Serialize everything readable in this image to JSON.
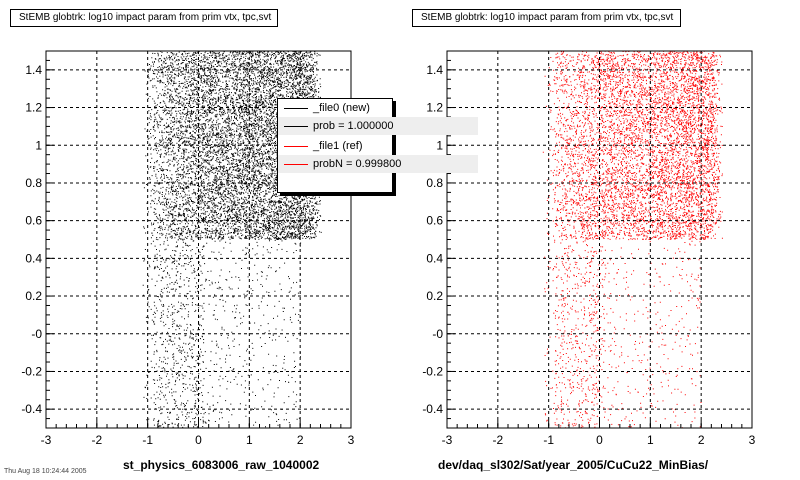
{
  "footer_note": "Thu Aug 18 10:24:44 2005",
  "panels": [
    {
      "title": "StEMB globtrk: log10 impact param from prim vtx, tpc,svt",
      "xlabel": "st_physics_6083006_raw_1040002"
    },
    {
      "title": "StEMB globtrk: log10 impact param from prim vtx, tpc,svt",
      "xlabel": "dev/daq_sl302/Sat/year_2005/CuCu22_MinBias/"
    }
  ],
  "legend": {
    "entries": [
      {
        "label": "_file0 (new)",
        "color": "#000000"
      },
      {
        "label": "prob = 1.000000",
        "color": "#000000"
      },
      {
        "label": "_file1 (ref)",
        "color": "#ff0000"
      },
      {
        "label": "probN = 0.999800",
        "color": "#ff0000"
      }
    ]
  },
  "chart_data": [
    {
      "type": "scatter",
      "title": "StEMB globtrk: log10 impact param from prim vtx, tpc,svt",
      "xlabel": "st_physics_6083006_raw_1040002",
      "ylabel": "",
      "xlim": [
        -3,
        3
      ],
      "ylim": [
        -0.5,
        1.5
      ],
      "xticks": [
        "-3",
        "-2",
        "-1",
        "0",
        "1",
        "2",
        "3"
      ],
      "yticks": [
        "-0.4",
        "-0.2",
        "-0",
        "0.2",
        "0.4",
        "0.6",
        "0.8",
        "1",
        "1.2",
        "1.4"
      ],
      "grid": true,
      "color": "#000000",
      "series": [
        {
          "name": "_file0 (new)",
          "regions": [
            {
              "description": "dense band",
              "x": [
                -1.0,
                2.3
              ],
              "y": [
                0.5,
                1.5
              ],
              "density": "high"
            },
            {
              "description": "sparse band",
              "x": [
                -1.1,
                2.0
              ],
              "y": [
                -0.5,
                0.5
              ],
              "density": "low"
            }
          ]
        }
      ]
    },
    {
      "type": "scatter",
      "title": "StEMB globtrk: log10 impact param from prim vtx, tpc,svt",
      "xlabel": "dev/daq_sl302/Sat/year_2005/CuCu22_MinBias/",
      "ylabel": "",
      "xlim": [
        -3,
        3
      ],
      "ylim": [
        -0.5,
        1.5
      ],
      "xticks": [
        "-3",
        "-2",
        "-1",
        "0",
        "1",
        "2",
        "3"
      ],
      "yticks": [
        "-0.4",
        "-0.2",
        "-0",
        "0.2",
        "0.4",
        "0.6",
        "0.8",
        "1",
        "1.2",
        "1.4"
      ],
      "grid": true,
      "color": "#ff0000",
      "series": [
        {
          "name": "_file1 (ref)",
          "regions": [
            {
              "description": "dense band",
              "x": [
                -1.0,
                2.3
              ],
              "y": [
                0.5,
                1.5
              ],
              "density": "high"
            },
            {
              "description": "sparse band",
              "x": [
                -1.1,
                2.0
              ],
              "y": [
                -0.5,
                0.5
              ],
              "density": "low"
            }
          ]
        }
      ]
    }
  ]
}
